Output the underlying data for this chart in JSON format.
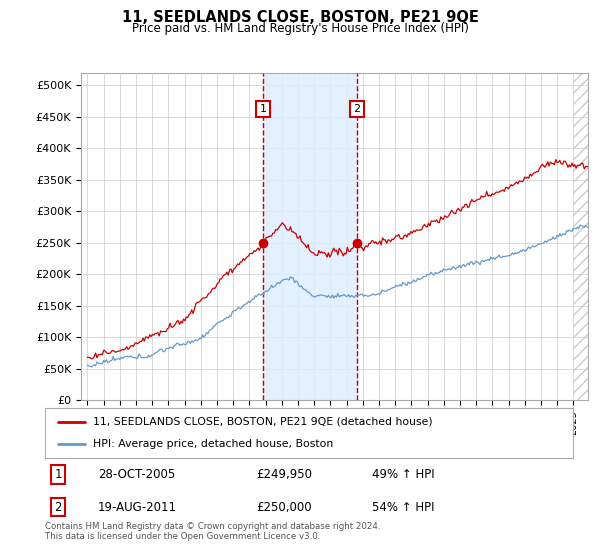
{
  "title": "11, SEEDLANDS CLOSE, BOSTON, PE21 9QE",
  "subtitle": "Price paid vs. HM Land Registry's House Price Index (HPI)",
  "ylim": [
    0,
    520000
  ],
  "yticks": [
    0,
    50000,
    100000,
    150000,
    200000,
    250000,
    300000,
    350000,
    400000,
    450000,
    500000
  ],
  "ytick_labels": [
    "£0",
    "£50K",
    "£100K",
    "£150K",
    "£200K",
    "£250K",
    "£300K",
    "£350K",
    "£400K",
    "£450K",
    "£500K"
  ],
  "line1_color": "#cc0000",
  "line2_color": "#6699cc",
  "marker1_date": 2005.83,
  "marker2_date": 2011.63,
  "marker1_value": 249950,
  "marker2_value": 250000,
  "vspan_color": "#ddeeff",
  "vline_color": "#cc0000",
  "legend_line1": "11, SEEDLANDS CLOSE, BOSTON, PE21 9QE (detached house)",
  "legend_line2": "HPI: Average price, detached house, Boston",
  "table_row1": [
    "1",
    "28-OCT-2005",
    "£249,950",
    "49% ↑ HPI"
  ],
  "table_row2": [
    "2",
    "19-AUG-2011",
    "£250,000",
    "54% ↑ HPI"
  ],
  "footnote": "Contains HM Land Registry data © Crown copyright and database right 2024.\nThis data is licensed under the Open Government Licence v3.0.",
  "background_color": "#ffffff",
  "plot_bg_color": "#ffffff",
  "grid_color": "#cccccc",
  "hatch_color": "#cccccc"
}
